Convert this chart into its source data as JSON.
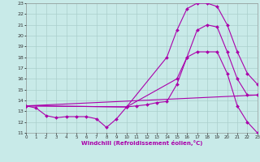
{
  "xlabel": "Windchill (Refroidissement éolien,°C)",
  "bg_color": "#c8eae8",
  "grid_color": "#aacfcc",
  "line_color": "#aa00aa",
  "xlim": [
    0,
    23
  ],
  "ylim": [
    11,
    23
  ],
  "xticks": [
    0,
    1,
    2,
    3,
    4,
    5,
    6,
    7,
    8,
    9,
    10,
    11,
    12,
    13,
    14,
    15,
    16,
    17,
    18,
    19,
    20,
    21,
    22,
    23
  ],
  "yticks": [
    11,
    12,
    13,
    14,
    15,
    16,
    17,
    18,
    19,
    20,
    21,
    22,
    23
  ],
  "series": [
    {
      "x": [
        0,
        1,
        2,
        3,
        4,
        5,
        6,
        7,
        8,
        9,
        10,
        11,
        12,
        13,
        14,
        15,
        16,
        17,
        18,
        19,
        20,
        21,
        22,
        23
      ],
      "y": [
        13.5,
        13.3,
        12.6,
        12.4,
        12.5,
        12.5,
        12.5,
        12.3,
        11.5,
        12.3,
        13.4,
        13.5,
        13.6,
        13.8,
        13.9,
        15.5,
        18.0,
        18.5,
        18.5,
        18.5,
        16.5,
        13.5,
        12.0,
        11.0
      ],
      "marker": "D",
      "ms": 2.0
    },
    {
      "x": [
        0,
        10,
        14,
        15,
        16,
        17,
        18,
        19,
        20,
        21,
        22,
        23
      ],
      "y": [
        13.5,
        13.4,
        18.0,
        20.5,
        22.5,
        23.0,
        23.0,
        22.7,
        21.0,
        18.5,
        16.5,
        15.5
      ],
      "marker": "D",
      "ms": 2.0
    },
    {
      "x": [
        0,
        10,
        15,
        16,
        17,
        18,
        19,
        20,
        21,
        22,
        23
      ],
      "y": [
        13.5,
        13.4,
        16.0,
        18.0,
        20.5,
        21.0,
        20.8,
        18.5,
        16.0,
        14.5,
        14.5
      ],
      "marker": "D",
      "ms": 2.0
    },
    {
      "x": [
        0,
        23
      ],
      "y": [
        13.5,
        14.5
      ],
      "marker": null,
      "ms": 0
    }
  ]
}
